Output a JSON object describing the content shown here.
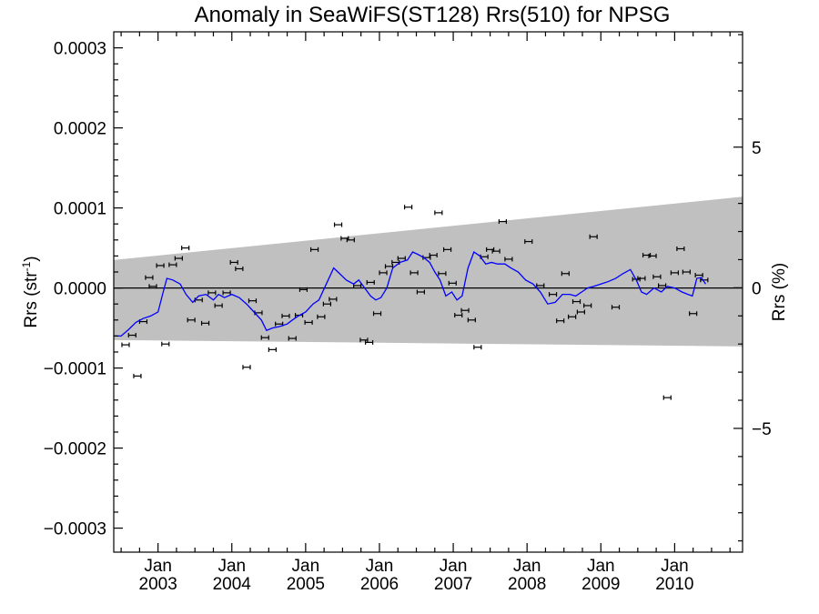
{
  "chart_data": {
    "type": "scatter",
    "title": "Anomaly in SeaWiFS(ST128) Rrs(510) for NPSG",
    "ylabel_main": "Rrs (str",
    "ylabel_sup": "-1",
    "ylabel_tail": ")",
    "y2label": "Rrs (%)",
    "xlim": [
      2002.4,
      2010.92
    ],
    "ylim": [
      -0.00033,
      0.00032
    ],
    "y2lim": [
      -9.4,
      9.1
    ],
    "x_ticks": [
      {
        "x": 2003.0,
        "line1": "Jan",
        "line2": "2003"
      },
      {
        "x": 2004.0,
        "line1": "Jan",
        "line2": "2004"
      },
      {
        "x": 2005.0,
        "line1": "Jan",
        "line2": "2005"
      },
      {
        "x": 2006.0,
        "line1": "Jan",
        "line2": "2006"
      },
      {
        "x": 2007.0,
        "line1": "Jan",
        "line2": "2007"
      },
      {
        "x": 2008.0,
        "line1": "Jan",
        "line2": "2008"
      },
      {
        "x": 2009.0,
        "line1": "Jan",
        "line2": "2009"
      },
      {
        "x": 2010.0,
        "line1": "Jan",
        "line2": "2010"
      }
    ],
    "y_ticks": [
      {
        "v": 0.0003,
        "label": "0.0003"
      },
      {
        "v": 0.0002,
        "label": "0.0002"
      },
      {
        "v": 0.0001,
        "label": "0.0001"
      },
      {
        "v": 0.0,
        "label": "0.0000"
      },
      {
        "v": -0.0001,
        "label": "−0.0001"
      },
      {
        "v": -0.0002,
        "label": "−0.0002"
      },
      {
        "v": -0.0003,
        "label": "−0.0003"
      }
    ],
    "y2_ticks": [
      {
        "v": 5,
        "label": "5"
      },
      {
        "v": 0,
        "label": "0"
      },
      {
        "v": -5,
        "label": "−5"
      }
    ],
    "band": {
      "x": [
        2002.4,
        2010.92
      ],
      "upper": [
        3.5e-05,
        0.000114
      ],
      "lower": [
        -6.5e-05,
        -7.3e-05
      ]
    },
    "zero_line": 0.0,
    "points": [
      {
        "x": 2002.56,
        "y": -7.1e-05
      },
      {
        "x": 2002.65,
        "y": -5.9e-05
      },
      {
        "x": 2002.72,
        "y": -0.00011
      },
      {
        "x": 2002.8,
        "y": -4.2e-05
      },
      {
        "x": 2002.88,
        "y": 1.3e-05
      },
      {
        "x": 2002.93,
        "y": 2e-06
      },
      {
        "x": 2003.03,
        "y": 2.8e-05
      },
      {
        "x": 2003.1,
        "y": -7e-05
      },
      {
        "x": 2003.2,
        "y": 2.9e-05
      },
      {
        "x": 2003.28,
        "y": 3.7e-05
      },
      {
        "x": 2003.37,
        "y": 5e-05
      },
      {
        "x": 2003.45,
        "y": -4e-05
      },
      {
        "x": 2003.55,
        "y": -1.5e-05
      },
      {
        "x": 2003.64,
        "y": -4.4e-05
      },
      {
        "x": 2003.73,
        "y": -6e-06
      },
      {
        "x": 2003.82,
        "y": -2.2e-05
      },
      {
        "x": 2003.93,
        "y": -6e-06
      },
      {
        "x": 2004.03,
        "y": 3.2e-05
      },
      {
        "x": 2004.1,
        "y": 2.4e-05
      },
      {
        "x": 2004.2,
        "y": -9.9e-05
      },
      {
        "x": 2004.28,
        "y": -1.6e-05
      },
      {
        "x": 2004.36,
        "y": -3.1e-05
      },
      {
        "x": 2004.45,
        "y": -6.2e-05
      },
      {
        "x": 2004.55,
        "y": -7.7e-05
      },
      {
        "x": 2004.64,
        "y": -4.5e-05
      },
      {
        "x": 2004.73,
        "y": -3.5e-05
      },
      {
        "x": 2004.82,
        "y": -6.3e-05
      },
      {
        "x": 2004.91,
        "y": -3.4e-05
      },
      {
        "x": 2004.97,
        "y": -2e-06
      },
      {
        "x": 2005.04,
        "y": -4.3e-05
      },
      {
        "x": 2005.12,
        "y": 4.8e-05
      },
      {
        "x": 2005.21,
        "y": -3.6e-05
      },
      {
        "x": 2005.29,
        "y": -2e-05
      },
      {
        "x": 2005.37,
        "y": -1.4e-05
      },
      {
        "x": 2005.44,
        "y": 7.9e-05
      },
      {
        "x": 2005.53,
        "y": 6.2e-05
      },
      {
        "x": 2005.61,
        "y": 6e-05
      },
      {
        "x": 2005.7,
        "y": 3e-06
      },
      {
        "x": 2005.79,
        "y": -6.5e-05
      },
      {
        "x": 2005.86,
        "y": -6.8e-05
      },
      {
        "x": 2005.88,
        "y": 7e-06
      },
      {
        "x": 2005.97,
        "y": -3.2e-05
      },
      {
        "x": 2006.05,
        "y": 1.9e-05
      },
      {
        "x": 2006.13,
        "y": 2.7e-05
      },
      {
        "x": 2006.22,
        "y": 3.2e-05
      },
      {
        "x": 2006.3,
        "y": 3.7e-05
      },
      {
        "x": 2006.39,
        "y": 0.000101
      },
      {
        "x": 2006.47,
        "y": 1.9e-05
      },
      {
        "x": 2006.56,
        "y": -5e-06
      },
      {
        "x": 2006.64,
        "y": 3.8e-05
      },
      {
        "x": 2006.73,
        "y": 4.1e-05
      },
      {
        "x": 2006.8,
        "y": 9.4e-05
      },
      {
        "x": 2006.85,
        "y": 1.8e-05
      },
      {
        "x": 2006.92,
        "y": 4.8e-05
      },
      {
        "x": 2006.99,
        "y": 6e-06
      },
      {
        "x": 2007.07,
        "y": -3.4e-05
      },
      {
        "x": 2007.16,
        "y": -2.8e-05
      },
      {
        "x": 2007.25,
        "y": -4e-05
      },
      {
        "x": 2007.33,
        "y": -7.4e-05
      },
      {
        "x": 2007.42,
        "y": 3.9e-05
      },
      {
        "x": 2007.5,
        "y": 4.8e-05
      },
      {
        "x": 2007.58,
        "y": 4.6e-05
      },
      {
        "x": 2007.67,
        "y": 8.3e-05
      },
      {
        "x": 2007.75,
        "y": 3.6e-05
      },
      {
        "x": 2008.02,
        "y": 5.8e-05
      },
      {
        "x": 2008.18,
        "y": 3e-06
      },
      {
        "x": 2008.35,
        "y": -8e-06
      },
      {
        "x": 2008.45,
        "y": -4.1e-05
      },
      {
        "x": 2008.52,
        "y": 1.8e-05
      },
      {
        "x": 2008.61,
        "y": -3.6e-05
      },
      {
        "x": 2008.67,
        "y": -1.7e-05
      },
      {
        "x": 2008.73,
        "y": -3e-05
      },
      {
        "x": 2008.82,
        "y": -2.2e-05
      },
      {
        "x": 2008.9,
        "y": 6.4e-05
      },
      {
        "x": 2009.2,
        "y": -2.4e-05
      },
      {
        "x": 2009.48,
        "y": 1.1e-05
      },
      {
        "x": 2009.55,
        "y": 1.2e-05
      },
      {
        "x": 2009.62,
        "y": 4.1e-05
      },
      {
        "x": 2009.7,
        "y": 4e-05
      },
      {
        "x": 2009.76,
        "y": 1.4e-05
      },
      {
        "x": 2009.83,
        "y": 3e-06
      },
      {
        "x": 2009.9,
        "y": -0.000137
      },
      {
        "x": 2010.0,
        "y": 1.9e-05
      },
      {
        "x": 2010.08,
        "y": 4.9e-05
      },
      {
        "x": 2010.16,
        "y": 2e-05
      },
      {
        "x": 2010.25,
        "y": -3.2e-05
      },
      {
        "x": 2010.33,
        "y": 1.6e-05
      },
      {
        "x": 2010.4,
        "y": 1e-05
      }
    ],
    "smooth_line": {
      "color": "#0000ff",
      "x": [
        2002.4,
        2002.5,
        2002.6,
        2002.7,
        2002.8,
        2002.9,
        2003.0,
        2003.07,
        2003.12,
        2003.2,
        2003.3,
        2003.38,
        2003.47,
        2003.55,
        2003.65,
        2003.75,
        2003.82,
        2003.9,
        2004.0,
        2004.1,
        2004.2,
        2004.3,
        2004.4,
        2004.47,
        2004.55,
        2004.65,
        2004.75,
        2004.82,
        2004.9,
        2005.0,
        2005.1,
        2005.18,
        2005.28,
        2005.38,
        2005.46,
        2005.55,
        2005.65,
        2005.72,
        2005.8,
        2005.88,
        2005.95,
        2006.02,
        2006.1,
        2006.18,
        2006.28,
        2006.38,
        2006.45,
        2006.52,
        2006.6,
        2006.68,
        2006.75,
        2006.82,
        2006.9,
        2006.98,
        2007.05,
        2007.12,
        2007.2,
        2007.28,
        2007.36,
        2007.44,
        2007.52,
        2007.6,
        2007.7,
        2007.78,
        2007.88,
        2007.98,
        2008.08,
        2008.18,
        2008.28,
        2008.38,
        2008.48,
        2008.58,
        2008.66,
        2008.74,
        2008.82,
        2008.9,
        2009.0,
        2009.1,
        2009.2,
        2009.3,
        2009.4,
        2009.48,
        2009.55,
        2009.62,
        2009.72,
        2009.82,
        2009.9,
        2010.0,
        2010.1,
        2010.18,
        2010.24,
        2010.3,
        2010.36,
        2010.42
      ],
      "y": [
        -6e-05,
        -6e-05,
        -5.2e-05,
        -4.3e-05,
        -3.8e-05,
        -3.5e-05,
        -3e-05,
        -5e-06,
        1.2e-05,
        1e-05,
        5e-06,
        -8e-06,
        -1.8e-05,
        -1e-05,
        -8e-06,
        -1.5e-05,
        -8e-06,
        -1.2e-05,
        -8e-06,
        -1.2e-05,
        -2e-05,
        -3e-05,
        -4e-05,
        -5.3e-05,
        -5e-05,
        -4.8e-05,
        -4.5e-05,
        -4e-05,
        -3.5e-05,
        -3e-05,
        -2e-05,
        -1.5e-05,
        5e-06,
        2.5e-05,
        1.8e-05,
        1e-05,
        5e-06,
        1e-05,
        0.0,
        -1e-05,
        -1.5e-05,
        -1.2e-05,
        0.0,
        2.5e-05,
        3.2e-05,
        3.5e-05,
        4.5e-05,
        4.2e-05,
        3.8e-05,
        3.2e-05,
        2e-05,
        1e-05,
        -1e-05,
        -5e-06,
        -1.5e-05,
        -1e-05,
        2.5e-05,
        4.5e-05,
        4e-05,
        3e-05,
        3.2e-05,
        3e-05,
        3e-05,
        2.5e-05,
        2e-05,
        1e-05,
        5e-06,
        -5e-06,
        -2e-05,
        -1.8e-05,
        -8e-06,
        -8e-06,
        -1e-05,
        -5e-06,
        0.0,
        2e-06,
        5e-06,
        8e-06,
        1.2e-05,
        1.8e-05,
        2.3e-05,
        1e-05,
        -5e-06,
        -8e-06,
        0.0,
        -5e-06,
        2e-06,
        0.0,
        -5e-06,
        -8e-06,
        -1e-05,
        1.2e-05,
        1.3e-05,
        5e-06
      ]
    },
    "colors": {
      "band": "#c0c0c0",
      "points": "#000000",
      "line": "#0000ff",
      "axes": "#000000"
    }
  }
}
